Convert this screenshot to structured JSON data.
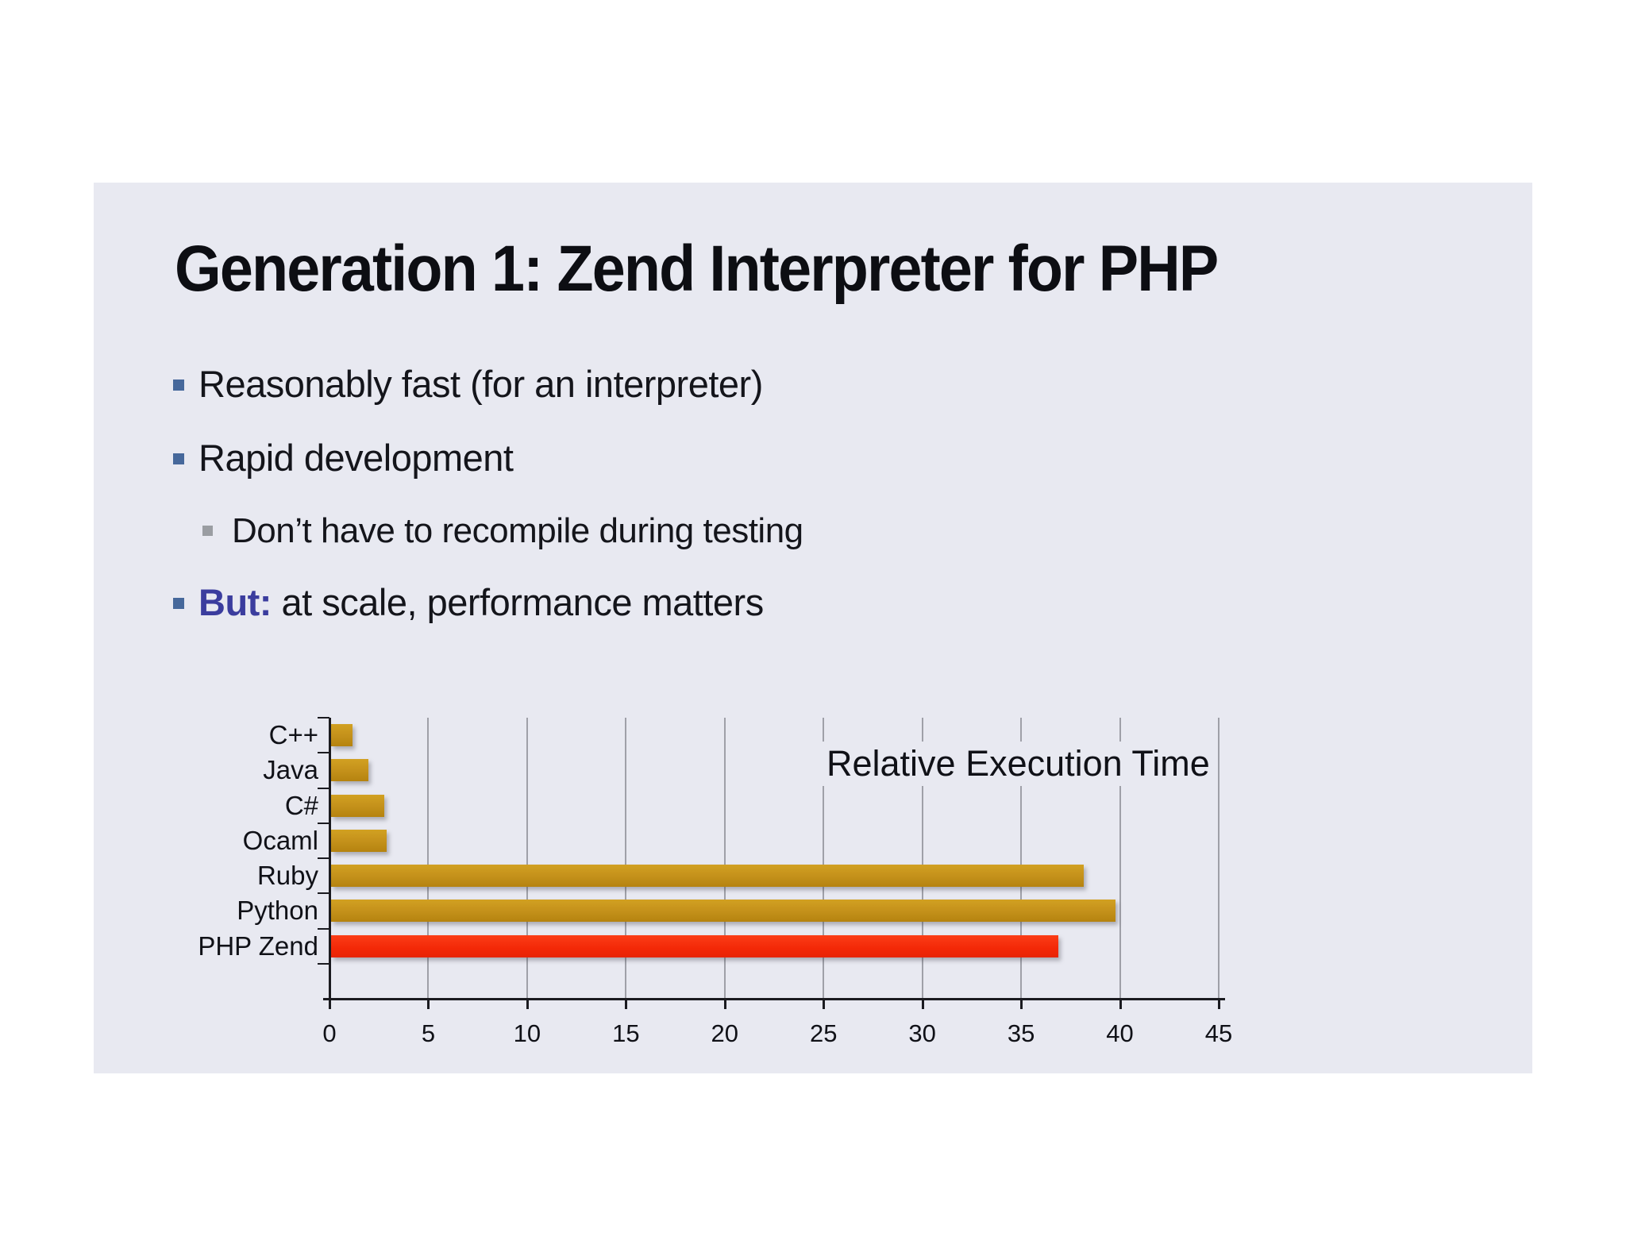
{
  "slide": {
    "title": "Generation 1: Zend Interpreter for PHP",
    "bullets": [
      {
        "level": 1,
        "prefix": "",
        "text": "Reasonably fast (for an interpreter)"
      },
      {
        "level": 1,
        "prefix": "",
        "text": "Rapid development"
      },
      {
        "level": 2,
        "prefix": "",
        "text": "Don’t have to recompile during testing"
      },
      {
        "level": 1,
        "prefix": "But:",
        "text": "at scale, performance matters"
      }
    ]
  },
  "chart_data": {
    "type": "bar",
    "orientation": "horizontal",
    "title": "Relative Execution Time",
    "categories": [
      "C++",
      "Java",
      "C#",
      "Ocaml",
      "Ruby",
      "Python",
      "PHP Zend"
    ],
    "values": [
      1.1,
      1.9,
      2.7,
      2.8,
      38.1,
      39.7,
      36.8
    ],
    "xlim": [
      0,
      45
    ],
    "xticks": [
      0,
      5,
      10,
      15,
      20,
      25,
      30,
      35,
      40,
      45
    ],
    "grid": true,
    "legend": "none",
    "bar_color": "#c6951c",
    "highlight_category": "PHP Zend",
    "highlight_color": "#f42d0b"
  },
  "colors": {
    "slide_bg": "#e8e9f1",
    "text": "#14151b",
    "emphasis": "#3b3d9e",
    "bullet_level1": "#46689b",
    "bullet_level2": "#9a9da2",
    "bar_gold": "#c6951c",
    "bar_red": "#f42d0b",
    "axis": "#1b1b20",
    "gridline": "#9fa0a8"
  }
}
